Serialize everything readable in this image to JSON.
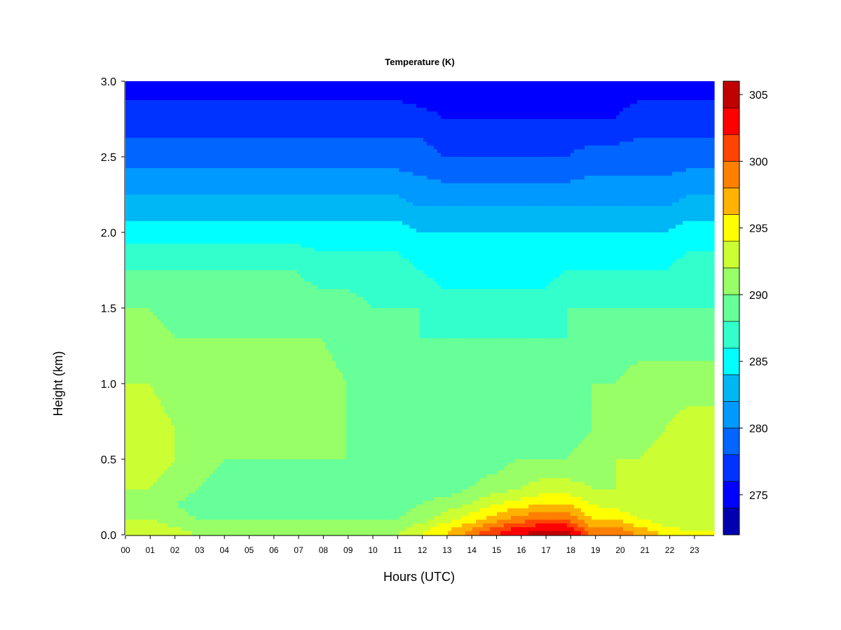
{
  "chart_data": {
    "type": "heatmap",
    "title": "Temperature (K)",
    "xlabel": "Hours (UTC)",
    "ylabel": "Height (km)",
    "x_ticks": [
      "00",
      "01",
      "02",
      "03",
      "04",
      "05",
      "06",
      "07",
      "08",
      "09",
      "10",
      "11",
      "12",
      "13",
      "14",
      "15",
      "16",
      "17",
      "18",
      "19",
      "20",
      "21",
      "22",
      "23"
    ],
    "xlim": [
      0,
      24
    ],
    "y_ticks": [
      "0.0",
      "0.5",
      "1.0",
      "1.5",
      "2.0",
      "2.5",
      "3.0"
    ],
    "ylim": [
      0,
      3
    ],
    "colorbar": {
      "ticks": [
        "275",
        "280",
        "285",
        "290",
        "295",
        "300",
        "305"
      ],
      "range": [
        272,
        306
      ],
      "levels": [
        272,
        274,
        276,
        278,
        280,
        282,
        284,
        286,
        288,
        290,
        292,
        294,
        296,
        298,
        300,
        302,
        304,
        306
      ],
      "colors": [
        "#000080",
        "#0000b0",
        "#0000ff",
        "#0033ff",
        "#0066ff",
        "#0099ff",
        "#00b7f5",
        "#00ffff",
        "#33ffcc",
        "#66ff99",
        "#99ff66",
        "#ccff33",
        "#ffff00",
        "#ffb300",
        "#ff8000",
        "#ff4400",
        "#ff0000",
        "#c00000",
        "#800000"
      ]
    },
    "heights_km": [
      0.0,
      0.05,
      0.1,
      0.2,
      0.3,
      0.5,
      0.7,
      1.0,
      1.3,
      1.5,
      1.75,
      2.0,
      2.25,
      2.5,
      2.75,
      3.0
    ],
    "hours": [
      0,
      1,
      2,
      3,
      4,
      5,
      6,
      7,
      8,
      9,
      10,
      11,
      12,
      13,
      14,
      15,
      16,
      17,
      18,
      19,
      20,
      21,
      22,
      23,
      24
    ],
    "temperature_K": [
      [
        294,
        294,
        293,
        292,
        292,
        292,
        292,
        292,
        292,
        292,
        292,
        292,
        294,
        296,
        299,
        302,
        304,
        305,
        305,
        300,
        300,
        298,
        296,
        295,
        295
      ],
      [
        293,
        293,
        292,
        291,
        291,
        291,
        291,
        291,
        291,
        291,
        291,
        291,
        293,
        295,
        297,
        300,
        302,
        303,
        303,
        298,
        298,
        296,
        294,
        293,
        293
      ],
      [
        292,
        292,
        291,
        290,
        290,
        290,
        290,
        290,
        290,
        290,
        290,
        290,
        291,
        293,
        295,
        297,
        299,
        300,
        300,
        296,
        296,
        294,
        293,
        292,
        292
      ],
      [
        291,
        291,
        290,
        289,
        288,
        288,
        288,
        288,
        288,
        289,
        289,
        289,
        290,
        291,
        292,
        294,
        295,
        296,
        296,
        294,
        293,
        292,
        292,
        292,
        292
      ],
      [
        292,
        292,
        291,
        290,
        289,
        289,
        289,
        289,
        288,
        289,
        289,
        289,
        289,
        289,
        290,
        291,
        292,
        293,
        293,
        292,
        292,
        292,
        292,
        292,
        292
      ],
      [
        293,
        293,
        292,
        291,
        290,
        290,
        290,
        290,
        290,
        290,
        289,
        289,
        289,
        289,
        289,
        289,
        290,
        290,
        290,
        291,
        292,
        292,
        293,
        293,
        293
      ],
      [
        293,
        293,
        292,
        291,
        291,
        291,
        291,
        291,
        291,
        290,
        289,
        289,
        289,
        289,
        289,
        289,
        289,
        289,
        289,
        290,
        291,
        291,
        292,
        293,
        293
      ],
      [
        292,
        292,
        291,
        291,
        291,
        291,
        291,
        291,
        291,
        290,
        289,
        289,
        289,
        288,
        288,
        288,
        288,
        288,
        289,
        290,
        290,
        291,
        291,
        291,
        291
      ],
      [
        291,
        291,
        290,
        290,
        290,
        290,
        290,
        290,
        290,
        289,
        289,
        288,
        288,
        288,
        288,
        288,
        288,
        288,
        288,
        289,
        289,
        289,
        289,
        289,
        289
      ],
      [
        290,
        290,
        289,
        289,
        289,
        289,
        289,
        289,
        289,
        289,
        288,
        288,
        288,
        287,
        287,
        287,
        287,
        287,
        288,
        288,
        288,
        288,
        288,
        288,
        288
      ],
      [
        288,
        288,
        288,
        288,
        288,
        288,
        288,
        288,
        287,
        287,
        287,
        287,
        286,
        285,
        285,
        285,
        285,
        285,
        286,
        286,
        286,
        286,
        286,
        287,
        287
      ],
      [
        285,
        285,
        285,
        285,
        285,
        285,
        285,
        285,
        285,
        285,
        285,
        285,
        284,
        284,
        284,
        284,
        284,
        284,
        284,
        284,
        284,
        284,
        284,
        285,
        285
      ],
      [
        282,
        282,
        282,
        282,
        282,
        282,
        282,
        282,
        282,
        282,
        282,
        282,
        281,
        281,
        281,
        281,
        281,
        281,
        281,
        281,
        281,
        281,
        281,
        282,
        282
      ],
      [
        279,
        279,
        279,
        279,
        279,
        279,
        279,
        279,
        279,
        279,
        279,
        279,
        279,
        278,
        278,
        278,
        278,
        278,
        278,
        279,
        279,
        279,
        279,
        279,
        279
      ],
      [
        277,
        277,
        277,
        277,
        277,
        277,
        277,
        277,
        277,
        277,
        277,
        277,
        277,
        276,
        276,
        276,
        276,
        276,
        276,
        276,
        276,
        277,
        277,
        277,
        277
      ],
      [
        275,
        275,
        275,
        275,
        275,
        275,
        275,
        275,
        275,
        275,
        275,
        275,
        274,
        274,
        274,
        274,
        274,
        274,
        274,
        274,
        275,
        275,
        275,
        275,
        275
      ]
    ]
  }
}
